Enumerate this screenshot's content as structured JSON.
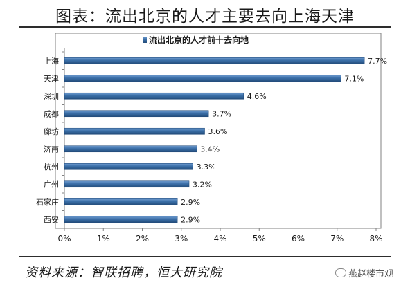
{
  "page": {
    "title": "图表：流出北京的人才主要去向上海天津",
    "source": "资料来源：智联招聘，恒大研究院",
    "watermark": "燕赵楼市观"
  },
  "chart_data": {
    "type": "bar",
    "orientation": "horizontal",
    "legend": "流出北京的人才前十去向地",
    "legend_position": "top-center",
    "categories": [
      "上海",
      "天津",
      "深圳",
      "成都",
      "廊坊",
      "济南",
      "杭州",
      "广州",
      "石家庄",
      "西安"
    ],
    "values": [
      7.7,
      7.1,
      4.6,
      3.7,
      3.6,
      3.4,
      3.3,
      3.2,
      2.9,
      2.9
    ],
    "value_labels": [
      "7.7%",
      "7.1%",
      "4.6%",
      "3.7%",
      "3.6%",
      "3.4%",
      "3.3%",
      "3.2%",
      "2.9%",
      "2.9%"
    ],
    "x_ticks": [
      "0%",
      "1%",
      "2%",
      "3%",
      "4%",
      "5%",
      "6%",
      "7%",
      "8%"
    ],
    "xlim": [
      0,
      8
    ],
    "grid": false,
    "colors": {
      "bar": "#3b6fa8",
      "bar_dark": "#244d7c",
      "bar_light": "#6f9bcf",
      "frame": "#808080",
      "text": "#1a1a1a"
    }
  }
}
